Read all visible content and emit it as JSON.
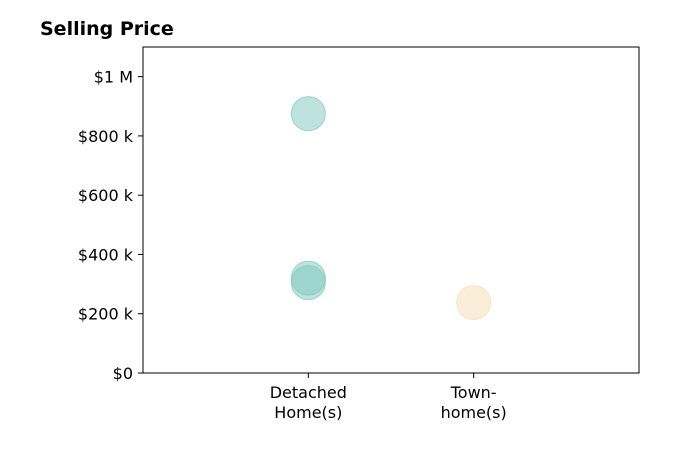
{
  "chart_data": {
    "type": "scatter",
    "title": "Selling Price",
    "xlabel": "",
    "ylabel": "",
    "categories": [
      [
        "Detached",
        "Home(s)"
      ],
      [
        "Town-",
        "home(s)"
      ]
    ],
    "xlim": [
      0,
      3
    ],
    "ylim": [
      0,
      1100000
    ],
    "yticks": [
      {
        "value": 0,
        "label": "$0"
      },
      {
        "value": 200000,
        "label": "$200 k"
      },
      {
        "value": 400000,
        "label": "$400 k"
      },
      {
        "value": 600000,
        "label": "$600 k"
      },
      {
        "value": 800000,
        "label": "$800 k"
      },
      {
        "value": 1000000,
        "label": "$1 M"
      }
    ],
    "grid": false,
    "series": [
      {
        "color": "#7ec8be",
        "points": [
          {
            "category": 0,
            "value": 875000
          },
          {
            "category": 0,
            "value": 320000
          },
          {
            "category": 0,
            "value": 305000
          }
        ]
      },
      {
        "color": "#f5deb3",
        "points": [
          {
            "category": 1,
            "value": 238000
          }
        ]
      }
    ]
  }
}
